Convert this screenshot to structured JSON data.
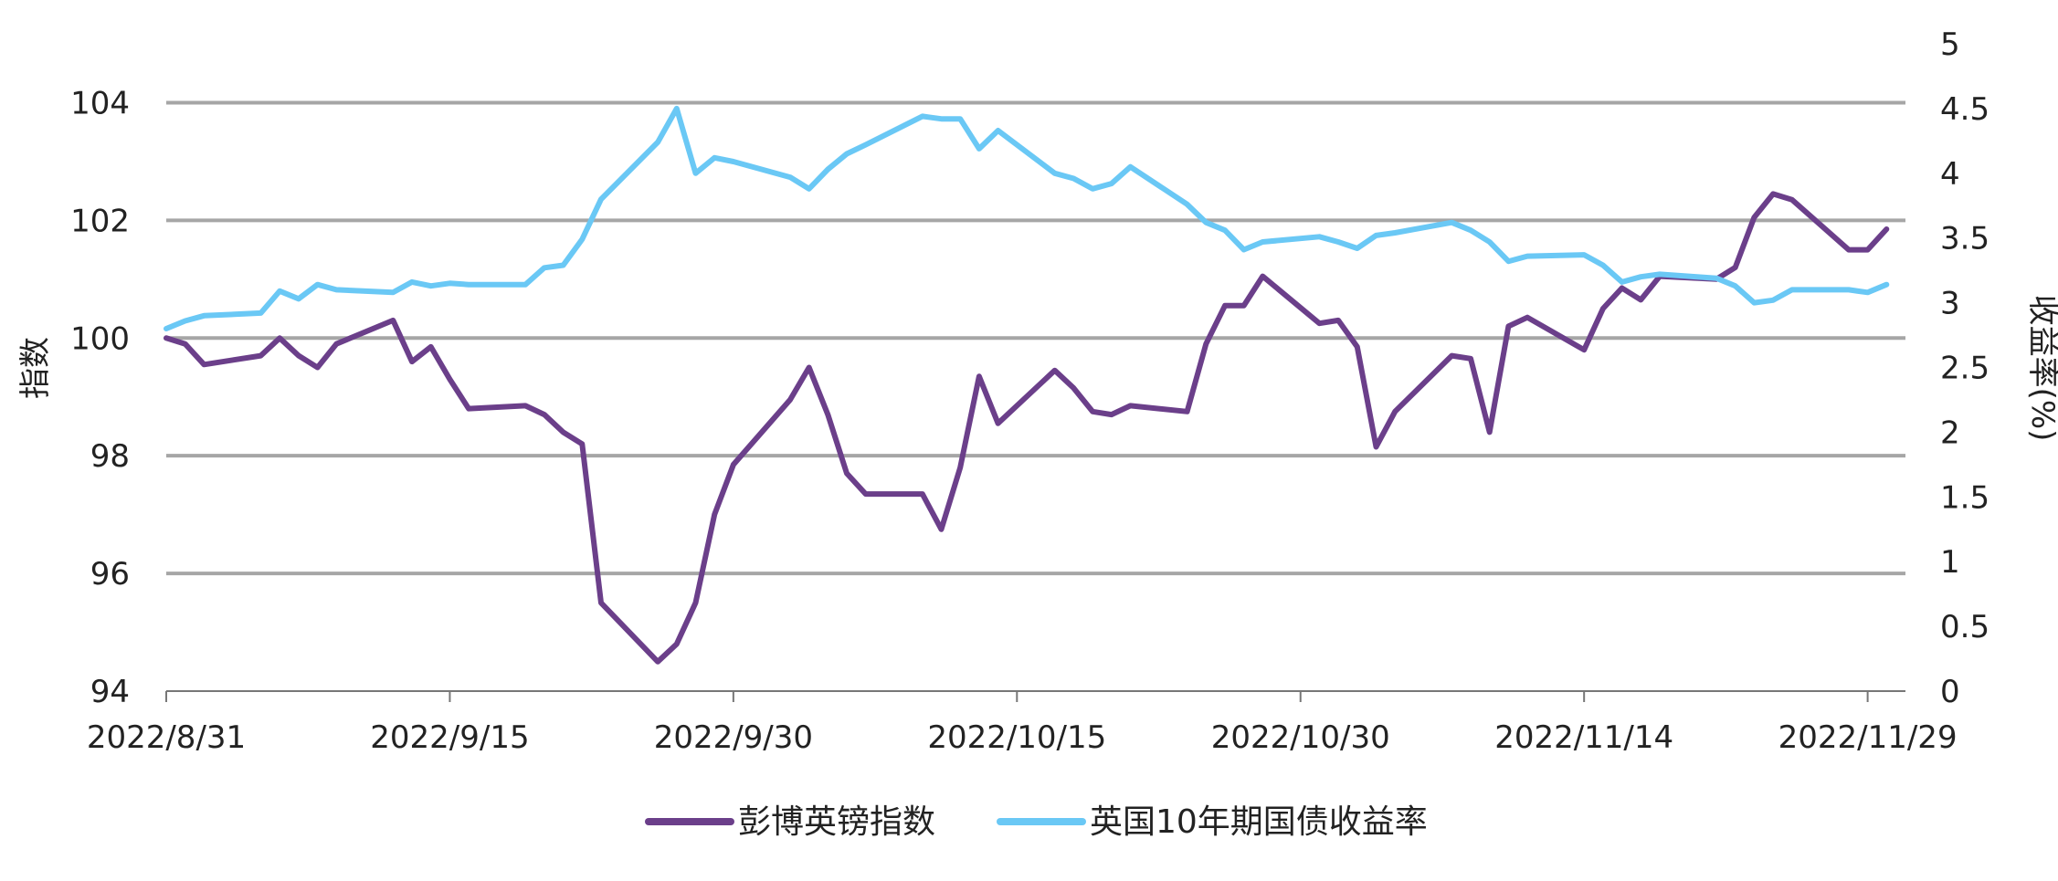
{
  "chart_data": {
    "type": "line",
    "ylabel_left": "指数",
    "ylabel_right": "收益率(%)",
    "x_tick_labels": [
      "2022/8/31",
      "2022/9/15",
      "2022/9/30",
      "2022/10/15",
      "2022/10/30",
      "2022/11/14",
      "2022/11/29"
    ],
    "y_left_ticks": [
      "94",
      "96",
      "98",
      "100",
      "102",
      "104"
    ],
    "y_right_ticks": [
      "0",
      "0.5",
      "1",
      "1.5",
      "2",
      "2.5",
      "3",
      "3.5",
      "4",
      "4.5",
      "5"
    ],
    "y_left_range": [
      94,
      105
    ],
    "y_right_range": [
      0,
      5
    ],
    "x_range": [
      "2022-08-31",
      "2022-12-01"
    ],
    "grid": true,
    "legend_position": "bottom",
    "colors": {
      "purple": "#6b3f8a",
      "blue": "#6ac8f5",
      "grid": "#a6a6a6",
      "axis": "#777777"
    },
    "series": [
      {
        "name": "彭博英镑指数",
        "axis": "left",
        "color": "#6b3f8a",
        "points": [
          [
            "2022-08-31",
            100.0
          ],
          [
            "2022-09-01",
            99.9
          ],
          [
            "2022-09-02",
            99.55
          ],
          [
            "2022-09-05",
            99.7
          ],
          [
            "2022-09-06",
            100.0
          ],
          [
            "2022-09-07",
            99.7
          ],
          [
            "2022-09-08",
            99.5
          ],
          [
            "2022-09-09",
            99.9
          ],
          [
            "2022-09-12",
            100.3
          ],
          [
            "2022-09-13",
            99.6
          ],
          [
            "2022-09-14",
            99.85
          ],
          [
            "2022-09-15",
            99.3
          ],
          [
            "2022-09-16",
            98.8
          ],
          [
            "2022-09-19",
            98.85
          ],
          [
            "2022-09-20",
            98.7
          ],
          [
            "2022-09-21",
            98.4
          ],
          [
            "2022-09-22",
            98.2
          ],
          [
            "2022-09-23",
            95.5
          ],
          [
            "2022-09-26",
            94.5
          ],
          [
            "2022-09-27",
            94.8
          ],
          [
            "2022-09-28",
            95.5
          ],
          [
            "2022-09-29",
            97.0
          ],
          [
            "2022-09-30",
            97.85
          ],
          [
            "2022-10-03",
            98.95
          ],
          [
            "2022-10-04",
            99.5
          ],
          [
            "2022-10-05",
            98.7
          ],
          [
            "2022-10-06",
            97.7
          ],
          [
            "2022-10-07",
            97.35
          ],
          [
            "2022-10-10",
            97.35
          ],
          [
            "2022-10-11",
            96.75
          ],
          [
            "2022-10-12",
            97.8
          ],
          [
            "2022-10-13",
            99.35
          ],
          [
            "2022-10-14",
            98.55
          ],
          [
            "2022-10-17",
            99.45
          ],
          [
            "2022-10-18",
            99.15
          ],
          [
            "2022-10-19",
            98.75
          ],
          [
            "2022-10-20",
            98.7
          ],
          [
            "2022-10-21",
            98.85
          ],
          [
            "2022-10-24",
            98.75
          ],
          [
            "2022-10-25",
            99.9
          ],
          [
            "2022-10-26",
            100.55
          ],
          [
            "2022-10-27",
            100.55
          ],
          [
            "2022-10-28",
            101.05
          ],
          [
            "2022-10-31",
            100.25
          ],
          [
            "2022-11-01",
            100.3
          ],
          [
            "2022-11-02",
            99.85
          ],
          [
            "2022-11-03",
            98.15
          ],
          [
            "2022-11-04",
            98.75
          ],
          [
            "2022-11-07",
            99.7
          ],
          [
            "2022-11-08",
            99.65
          ],
          [
            "2022-11-09",
            98.4
          ],
          [
            "2022-11-10",
            100.2
          ],
          [
            "2022-11-11",
            100.35
          ],
          [
            "2022-11-14",
            99.8
          ],
          [
            "2022-11-15",
            100.5
          ],
          [
            "2022-11-16",
            100.85
          ],
          [
            "2022-11-17",
            100.65
          ],
          [
            "2022-11-18",
            101.05
          ],
          [
            "2022-11-21",
            101.0
          ],
          [
            "2022-11-22",
            101.2
          ],
          [
            "2022-11-23",
            102.05
          ],
          [
            "2022-11-24",
            102.45
          ],
          [
            "2022-11-25",
            102.35
          ],
          [
            "2022-11-28",
            101.5
          ],
          [
            "2022-11-29",
            101.5
          ],
          [
            "2022-11-30",
            101.85
          ]
        ]
      },
      {
        "name": "英国10年期国债收益率",
        "axis": "right",
        "color": "#6ac8f5",
        "points": [
          [
            "2022-08-31",
            2.8
          ],
          [
            "2022-09-01",
            2.86
          ],
          [
            "2022-09-02",
            2.9
          ],
          [
            "2022-09-05",
            2.92
          ],
          [
            "2022-09-06",
            3.09
          ],
          [
            "2022-09-07",
            3.03
          ],
          [
            "2022-09-08",
            3.14
          ],
          [
            "2022-09-09",
            3.1
          ],
          [
            "2022-09-12",
            3.08
          ],
          [
            "2022-09-13",
            3.16
          ],
          [
            "2022-09-14",
            3.13
          ],
          [
            "2022-09-15",
            3.15
          ],
          [
            "2022-09-16",
            3.14
          ],
          [
            "2022-09-19",
            3.14
          ],
          [
            "2022-09-20",
            3.27
          ],
          [
            "2022-09-21",
            3.29
          ],
          [
            "2022-09-22",
            3.49
          ],
          [
            "2022-09-23",
            3.8
          ],
          [
            "2022-09-26",
            4.24
          ],
          [
            "2022-09-27",
            4.5
          ],
          [
            "2022-09-28",
            4.0
          ],
          [
            "2022-09-29",
            4.12
          ],
          [
            "2022-09-30",
            4.09
          ],
          [
            "2022-10-03",
            3.97
          ],
          [
            "2022-10-04",
            3.88
          ],
          [
            "2022-10-05",
            4.03
          ],
          [
            "2022-10-06",
            4.15
          ],
          [
            "2022-10-07",
            4.22
          ],
          [
            "2022-10-10",
            4.44
          ],
          [
            "2022-10-11",
            4.42
          ],
          [
            "2022-10-12",
            4.42
          ],
          [
            "2022-10-13",
            4.19
          ],
          [
            "2022-10-14",
            4.33
          ],
          [
            "2022-10-17",
            4.0
          ],
          [
            "2022-10-18",
            3.96
          ],
          [
            "2022-10-19",
            3.88
          ],
          [
            "2022-10-20",
            3.92
          ],
          [
            "2022-10-21",
            4.05
          ],
          [
            "2022-10-24",
            3.76
          ],
          [
            "2022-10-25",
            3.62
          ],
          [
            "2022-10-26",
            3.56
          ],
          [
            "2022-10-27",
            3.41
          ],
          [
            "2022-10-28",
            3.47
          ],
          [
            "2022-10-31",
            3.51
          ],
          [
            "2022-11-01",
            3.47
          ],
          [
            "2022-11-02",
            3.42
          ],
          [
            "2022-11-03",
            3.52
          ],
          [
            "2022-11-04",
            3.54
          ],
          [
            "2022-11-07",
            3.62
          ],
          [
            "2022-11-08",
            3.56
          ],
          [
            "2022-11-09",
            3.47
          ],
          [
            "2022-11-10",
            3.32
          ],
          [
            "2022-11-11",
            3.36
          ],
          [
            "2022-11-14",
            3.37
          ],
          [
            "2022-11-15",
            3.29
          ],
          [
            "2022-11-16",
            3.16
          ],
          [
            "2022-11-17",
            3.2
          ],
          [
            "2022-11-18",
            3.22
          ],
          [
            "2022-11-21",
            3.19
          ],
          [
            "2022-11-22",
            3.13
          ],
          [
            "2022-11-23",
            3.0
          ],
          [
            "2022-11-24",
            3.02
          ],
          [
            "2022-11-25",
            3.1
          ],
          [
            "2022-11-28",
            3.1
          ],
          [
            "2022-11-29",
            3.08
          ],
          [
            "2022-11-30",
            3.14
          ]
        ]
      }
    ]
  }
}
